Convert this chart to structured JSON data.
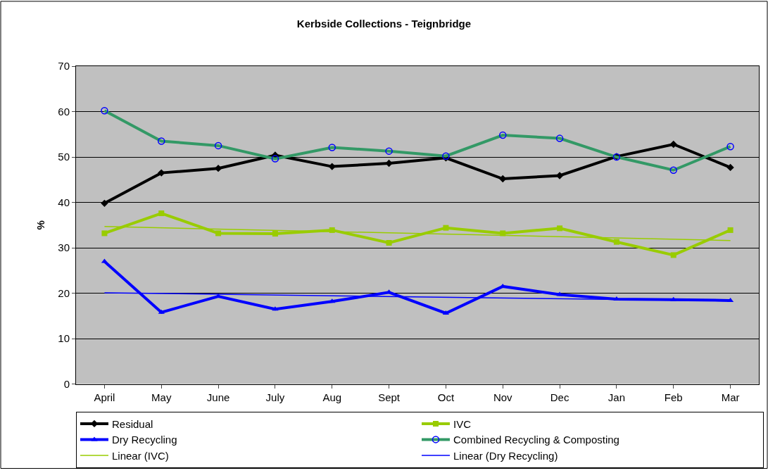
{
  "chart_data": {
    "type": "line",
    "title": "Kerbside Collections - Teignbridge",
    "ylabel": "%",
    "categories": [
      "April",
      "May",
      "June",
      "July",
      "Aug",
      "Sept",
      "Oct",
      "Nov",
      "Dec",
      "Jan",
      "Feb",
      "Mar"
    ],
    "series": [
      {
        "name": "Residual",
        "color": "#000000",
        "marker": "diamond",
        "values": [
          39.8,
          46.5,
          47.5,
          50.4,
          47.9,
          48.6,
          49.8,
          45.2,
          45.9,
          50.1,
          52.8,
          47.7
        ]
      },
      {
        "name": "IVC",
        "color": "#99cc00",
        "marker": "square",
        "values": [
          33.2,
          37.6,
          33.2,
          33.1,
          33.9,
          31.1,
          34.4,
          33.2,
          34.3,
          31.3,
          28.4,
          33.9
        ]
      },
      {
        "name": "Dry Recycling",
        "color": "#0000ff",
        "marker": "triangle",
        "values": [
          27.0,
          15.8,
          19.3,
          16.5,
          18.2,
          20.2,
          15.6,
          21.5,
          19.7,
          18.7,
          18.6,
          18.4
        ]
      },
      {
        "name": "Combined Recycling & Composting",
        "color": "#339966",
        "marker": "circle",
        "values": [
          60.2,
          53.5,
          52.5,
          49.6,
          52.1,
          51.3,
          50.2,
          54.8,
          54.1,
          50.0,
          47.1,
          52.3
        ]
      },
      {
        "name": "Linear (IVC)",
        "color": "#99cc00",
        "marker": "none",
        "x": [
          "April",
          "Mar"
        ],
        "values": [
          34.7,
          31.6
        ]
      },
      {
        "name": "Linear (Dry Recycling)",
        "color": "#0000ff",
        "marker": "none",
        "x": [
          "April",
          "Mar"
        ],
        "values": [
          20.1,
          18.3
        ]
      }
    ],
    "ylim": [
      0,
      70
    ],
    "yticks": [
      0,
      10,
      20,
      30,
      40,
      50,
      60,
      70
    ],
    "grid": "y",
    "legend": "bottom",
    "line_style": "solid"
  }
}
